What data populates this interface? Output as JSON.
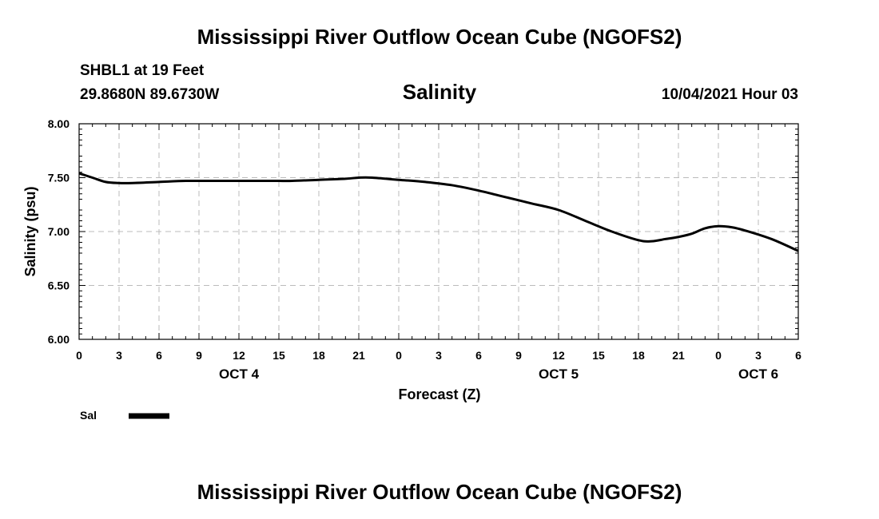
{
  "page_title": "Mississippi River Outflow Ocean Cube (NGOFS2)",
  "footer_title": "Mississippi River Outflow Ocean Cube (NGOFS2)",
  "station": "SHBL1 at 19 Feet",
  "location": "29.8680N  89.6730W",
  "variable_title": "Salinity",
  "run_time": "10/04/2021 Hour 03",
  "colors": {
    "line": "#000000",
    "grid": "#bbbbbb",
    "axis": "#000000"
  },
  "chart_data": {
    "type": "line",
    "title": "Salinity",
    "xlabel": "Forecast (Z)",
    "ylabel": "Salinity (psu)",
    "xlim": [
      0,
      54
    ],
    "ylim": [
      6.0,
      8.0
    ],
    "grid": true,
    "legend": "bottom-left",
    "x_ticks": [
      0,
      3,
      6,
      9,
      12,
      15,
      18,
      21,
      24,
      27,
      30,
      33,
      36,
      39,
      42,
      45,
      48,
      51,
      54
    ],
    "x_tick_labels": [
      "0",
      "3",
      "6",
      "9",
      "12",
      "15",
      "18",
      "21",
      "0",
      "3",
      "6",
      "9",
      "12",
      "15",
      "18",
      "21",
      "0",
      "3",
      "6"
    ],
    "y_ticks": [
      6.0,
      6.5,
      7.0,
      7.5,
      8.0
    ],
    "y_tick_labels": [
      "6.00",
      "6.50",
      "7.00",
      "7.50",
      "8.00"
    ],
    "date_labels": [
      {
        "x": 12,
        "label": "OCT 4"
      },
      {
        "x": 36,
        "label": "OCT 5"
      },
      {
        "x": 51,
        "label": "OCT 6"
      }
    ],
    "series": [
      {
        "name": "Sal",
        "x": [
          0,
          1,
          2,
          3,
          4,
          6,
          8,
          10,
          12,
          14,
          15,
          16,
          18,
          20,
          21,
          22,
          24,
          26,
          28,
          30,
          32,
          34,
          36,
          38,
          40,
          42,
          43,
          44,
          45,
          46,
          47,
          48,
          49,
          50,
          52,
          54
        ],
        "y": [
          7.54,
          7.5,
          7.46,
          7.45,
          7.45,
          7.46,
          7.47,
          7.47,
          7.47,
          7.47,
          7.47,
          7.47,
          7.48,
          7.49,
          7.5,
          7.5,
          7.48,
          7.46,
          7.43,
          7.38,
          7.32,
          7.26,
          7.2,
          7.1,
          7.0,
          6.92,
          6.91,
          6.93,
          6.95,
          6.98,
          7.03,
          7.05,
          7.04,
          7.01,
          6.93,
          6.82
        ]
      }
    ]
  }
}
